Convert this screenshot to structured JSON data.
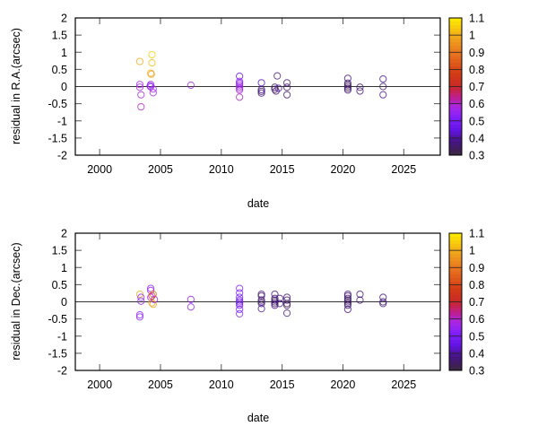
{
  "chart_data": [
    {
      "type": "scatter",
      "title": "",
      "xlabel": "date",
      "ylabel": "residual in R.A.(arcsec)",
      "xlim": [
        1998,
        2028
      ],
      "ylim": [
        -2,
        2
      ],
      "xticks": [
        "2000",
        "2005",
        "2010",
        "2015",
        "2020",
        "2025"
      ],
      "yticks": [
        "-2",
        "-1.5",
        "-1",
        "-0.5",
        "0",
        "0.5",
        "1",
        "1.5",
        "2"
      ],
      "colorbar": {
        "range": [
          0.3,
          1.1
        ],
        "ticks": [
          "0.3",
          "0.4",
          "0.5",
          "0.6",
          "0.7",
          "0.8",
          "0.9",
          "1",
          "1.1"
        ]
      },
      "zero_line": true,
      "points": [
        [
          2003.3,
          0.73,
          1.0
        ],
        [
          2004.3,
          0.93,
          1.05
        ],
        [
          2004.3,
          0.69,
          1.02
        ],
        [
          2004.2,
          0.39,
          1.0
        ],
        [
          2004.25,
          0.36,
          0.98
        ],
        [
          2003.3,
          0.06,
          0.58
        ],
        [
          2003.3,
          -0.02,
          0.58
        ],
        [
          2003.4,
          -0.24,
          0.58
        ],
        [
          2003.4,
          -0.59,
          0.6
        ],
        [
          2004.2,
          0.06,
          0.57
        ],
        [
          2004.2,
          -0.01,
          0.55
        ],
        [
          2004.15,
          0.02,
          0.52
        ],
        [
          2004.4,
          -0.07,
          0.58
        ],
        [
          2004.4,
          -0.18,
          0.58
        ],
        [
          2007.5,
          0.04,
          0.56
        ],
        [
          2011.5,
          0.3,
          0.45
        ],
        [
          2011.5,
          0.15,
          0.55
        ],
        [
          2011.5,
          0.1,
          0.52
        ],
        [
          2011.5,
          0.05,
          0.56
        ],
        [
          2011.5,
          0.0,
          0.55
        ],
        [
          2011.5,
          -0.05,
          0.58
        ],
        [
          2011.5,
          -0.1,
          0.58
        ],
        [
          2011.5,
          -0.31,
          0.6
        ],
        [
          2013.3,
          0.11,
          0.42
        ],
        [
          2013.3,
          -0.09,
          0.38
        ],
        [
          2013.3,
          -0.14,
          0.35
        ],
        [
          2013.3,
          -0.19,
          0.38
        ],
        [
          2014.6,
          0.31,
          0.36
        ],
        [
          2014.4,
          -0.02,
          0.34
        ],
        [
          2014.4,
          -0.08,
          0.34
        ],
        [
          2014.5,
          -0.13,
          0.36
        ],
        [
          2014.7,
          -0.05,
          0.4
        ],
        [
          2015.4,
          0.11,
          0.36
        ],
        [
          2015.4,
          -0.02,
          0.36
        ],
        [
          2015.4,
          -0.24,
          0.36
        ],
        [
          2020.4,
          0.24,
          0.38
        ],
        [
          2020.4,
          0.1,
          0.34
        ],
        [
          2020.4,
          0.05,
          0.34
        ],
        [
          2020.4,
          0.0,
          0.34
        ],
        [
          2020.4,
          -0.05,
          0.34
        ],
        [
          2020.4,
          -0.1,
          0.36
        ],
        [
          2021.4,
          -0.02,
          0.36
        ],
        [
          2021.4,
          -0.13,
          0.38
        ],
        [
          2023.3,
          0.22,
          0.4
        ],
        [
          2023.3,
          0.0,
          0.36
        ],
        [
          2023.3,
          -0.24,
          0.4
        ]
      ]
    },
    {
      "type": "scatter",
      "title": "",
      "xlabel": "date",
      "ylabel": "residual in Dec.(arcsec)",
      "xlim": [
        1998,
        2028
      ],
      "ylim": [
        -2,
        2
      ],
      "xticks": [
        "2000",
        "2005",
        "2010",
        "2015",
        "2020",
        "2025"
      ],
      "yticks": [
        "-2",
        "-1.5",
        "-1",
        "-0.5",
        "0",
        "0.5",
        "1",
        "1.5",
        "2"
      ],
      "colorbar": {
        "range": [
          0.3,
          1.1
        ],
        "ticks": [
          "0.3",
          "0.4",
          "0.5",
          "0.6",
          "0.7",
          "0.8",
          "0.9",
          "1",
          "1.1"
        ]
      },
      "zero_line": true,
      "points": [
        [
          2003.3,
          0.22,
          1.0
        ],
        [
          2003.4,
          0.13,
          0.55
        ],
        [
          2003.4,
          0.02,
          0.55
        ],
        [
          2003.3,
          -0.38,
          0.55
        ],
        [
          2003.3,
          -0.44,
          0.55
        ],
        [
          2004.2,
          0.39,
          0.55
        ],
        [
          2004.2,
          0.33,
          0.55
        ],
        [
          2004.2,
          0.13,
          0.58
        ],
        [
          2004.4,
          0.22,
          0.9
        ],
        [
          2004.4,
          -0.07,
          1.0
        ],
        [
          2004.3,
          -0.03,
          0.98
        ],
        [
          2004.5,
          0.07,
          0.55
        ],
        [
          2004.3,
          0.17,
          0.8
        ],
        [
          2007.5,
          0.07,
          0.55
        ],
        [
          2007.5,
          -0.15,
          0.55
        ],
        [
          2011.5,
          0.39,
          0.52
        ],
        [
          2011.5,
          0.26,
          0.52
        ],
        [
          2011.5,
          0.13,
          0.5
        ],
        [
          2011.5,
          0.05,
          0.5
        ],
        [
          2011.5,
          0.0,
          0.48
        ],
        [
          2011.5,
          -0.05,
          0.5
        ],
        [
          2011.5,
          -0.1,
          0.5
        ],
        [
          2011.5,
          -0.22,
          0.52
        ],
        [
          2011.5,
          -0.35,
          0.52
        ],
        [
          2013.3,
          0.22,
          0.38
        ],
        [
          2013.3,
          0.17,
          0.36
        ],
        [
          2013.3,
          0.05,
          0.36
        ],
        [
          2013.3,
          0.0,
          0.35
        ],
        [
          2013.3,
          -0.05,
          0.36
        ],
        [
          2013.3,
          -0.2,
          0.4
        ],
        [
          2014.4,
          0.22,
          0.38
        ],
        [
          2014.4,
          0.1,
          0.36
        ],
        [
          2014.4,
          0.05,
          0.34
        ],
        [
          2014.4,
          0.0,
          0.34
        ],
        [
          2014.4,
          -0.05,
          0.35
        ],
        [
          2014.4,
          -0.1,
          0.38
        ],
        [
          2014.8,
          0.1,
          0.38
        ],
        [
          2014.8,
          -0.05,
          0.38
        ],
        [
          2015.4,
          0.13,
          0.36
        ],
        [
          2015.4,
          0.05,
          0.36
        ],
        [
          2015.4,
          -0.05,
          0.34
        ],
        [
          2015.4,
          -0.1,
          0.34
        ],
        [
          2015.4,
          -0.33,
          0.38
        ],
        [
          2020.4,
          0.22,
          0.38
        ],
        [
          2020.4,
          0.17,
          0.36
        ],
        [
          2020.4,
          0.1,
          0.34
        ],
        [
          2020.4,
          0.05,
          0.34
        ],
        [
          2020.4,
          0.0,
          0.34
        ],
        [
          2020.4,
          -0.05,
          0.34
        ],
        [
          2020.4,
          -0.1,
          0.34
        ],
        [
          2020.4,
          -0.22,
          0.38
        ],
        [
          2021.4,
          0.22,
          0.38
        ],
        [
          2021.4,
          0.05,
          0.38
        ],
        [
          2023.3,
          0.13,
          0.38
        ],
        [
          2023.3,
          0.0,
          0.36
        ],
        [
          2023.3,
          -0.05,
          0.38
        ]
      ]
    }
  ]
}
